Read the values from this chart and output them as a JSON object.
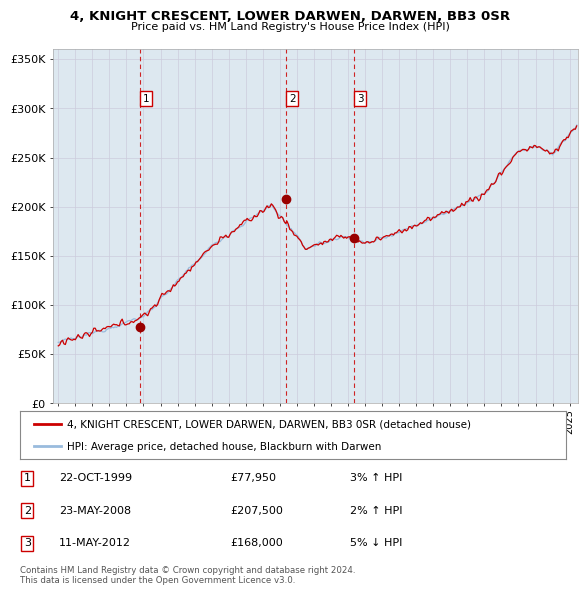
{
  "title": "4, KNIGHT CRESCENT, LOWER DARWEN, DARWEN, BB3 0SR",
  "subtitle": "Price paid vs. HM Land Registry's House Price Index (HPI)",
  "ylabel_ticks": [
    "£0",
    "£50K",
    "£100K",
    "£150K",
    "£200K",
    "£250K",
    "£300K",
    "£350K"
  ],
  "ytick_vals": [
    0,
    50000,
    100000,
    150000,
    200000,
    250000,
    300000,
    350000
  ],
  "ylim": [
    0,
    360000
  ],
  "xlim_start": 1994.7,
  "xlim_end": 2025.5,
  "sale_dates": [
    1999.81,
    2008.39,
    2012.37
  ],
  "sale_prices": [
    77950,
    207500,
    168000
  ],
  "sale_labels": [
    "1",
    "2",
    "3"
  ],
  "red_line_color": "#cc0000",
  "blue_line_color": "#99bbdd",
  "sale_vline_color": "#cc0000",
  "grid_color": "#ccccdd",
  "plot_bg_color": "#dde8f0",
  "legend_entries": [
    "4, KNIGHT CRESCENT, LOWER DARWEN, DARWEN, BB3 0SR (detached house)",
    "HPI: Average price, detached house, Blackburn with Darwen"
  ],
  "table_rows": [
    [
      "1",
      "22-OCT-1999",
      "£77,950",
      "3% ↑ HPI"
    ],
    [
      "2",
      "23-MAY-2008",
      "£207,500",
      "2% ↑ HPI"
    ],
    [
      "3",
      "11-MAY-2012",
      "£168,000",
      "5% ↓ HPI"
    ]
  ],
  "footnote": "Contains HM Land Registry data © Crown copyright and database right 2024.\nThis data is licensed under the Open Government Licence v3.0.",
  "background_color": "#ffffff"
}
